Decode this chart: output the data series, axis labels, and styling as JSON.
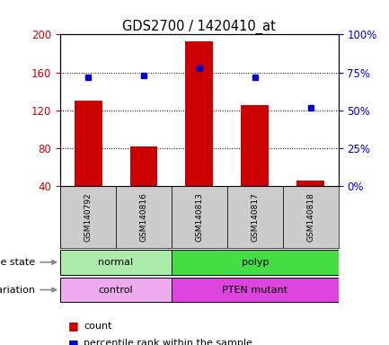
{
  "title": "GDS2700 / 1420410_at",
  "samples": [
    "GSM140792",
    "GSM140816",
    "GSM140813",
    "GSM140817",
    "GSM140818"
  ],
  "counts": [
    130,
    82,
    193,
    126,
    46
  ],
  "percentiles": [
    72,
    73,
    78,
    72,
    52
  ],
  "ylim_left": [
    40,
    200
  ],
  "ylim_right": [
    0,
    100
  ],
  "yticks_left": [
    40,
    80,
    120,
    160,
    200
  ],
  "yticks_right": [
    0,
    25,
    50,
    75,
    100
  ],
  "bar_color": "#cc0000",
  "dot_color": "#0000cc",
  "bar_bottom": 40,
  "disease_state": [
    {
      "label": "normal",
      "samples": [
        0,
        1
      ],
      "color": "#aaeaaa"
    },
    {
      "label": "polyp",
      "samples": [
        2,
        3,
        4
      ],
      "color": "#44dd44"
    }
  ],
  "genotype": [
    {
      "label": "control",
      "samples": [
        0,
        1
      ],
      "color": "#eeaaee"
    },
    {
      "label": "PTEN mutant",
      "samples": [
        2,
        3,
        4
      ],
      "color": "#dd44dd"
    }
  ],
  "legend_count_color": "#cc0000",
  "legend_pct_color": "#0000cc",
  "tick_label_color_left": "#cc0000",
  "tick_label_color_right": "#0000cc",
  "xticklabel_bg": "#cccccc",
  "arrow_color": "#888888"
}
